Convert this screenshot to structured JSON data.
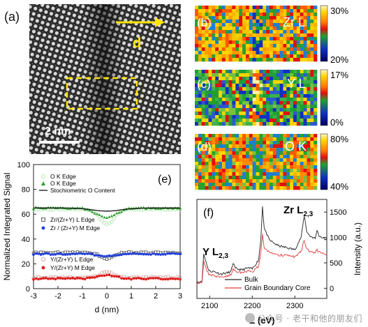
{
  "panels": {
    "a": {
      "label": "(a)",
      "arrow_label": "d",
      "scalebar_label": "2 nm"
    },
    "maps": [
      {
        "label": "(b)",
        "element": "Zr L",
        "scale_max": "30%",
        "scale_min": "20%"
      },
      {
        "label": "(c)",
        "element": "Y L",
        "scale_max": "17%",
        "scale_min": "0%"
      },
      {
        "label": "(d)",
        "element": "O K",
        "scale_max": "80%",
        "scale_min": "40%"
      }
    ],
    "e": {
      "label": "(e)"
    },
    "f": {
      "label": "(f)"
    }
  },
  "chart_data": [
    {
      "type": "scatter",
      "panel": "(e)",
      "xlabel": "d (nm)",
      "ylabel": "Normalized Integrated Signal",
      "xlim": [
        -3,
        3
      ],
      "ylim": [
        0,
        100
      ],
      "xticks": [
        -3,
        -2,
        -1,
        0,
        1,
        2,
        3
      ],
      "yticks": [
        0,
        20,
        40,
        60,
        80,
        100
      ],
      "legend_placement": "inside",
      "series": [
        {
          "name": "O K Edge",
          "style": "open-circle",
          "color": "#b6e7b6",
          "baseline": 64,
          "dip": -12,
          "width": 0.3,
          "point_step": 0.1
        },
        {
          "name": "O K Edge",
          "style": "filled-triangle",
          "color": "#2e9e2e",
          "baseline": 65,
          "dip": -8,
          "width": 0.4,
          "point_step": 0.1
        },
        {
          "name": "Stochiometric O Content",
          "style": "line",
          "color": "#111111",
          "baseline": 65,
          "dip": -2.5,
          "width": 0.6
        },
        {
          "name": "Zr/(Zr+Y)  L Edge",
          "style": "open-square",
          "color": "#555555",
          "baseline": 29,
          "dip": -5,
          "width": 0.25,
          "point_step": 0.1
        },
        {
          "name": "Zr / (Zr+Y) M Edge",
          "style": "filled-circle",
          "color": "#1f3fe0",
          "baseline": 28,
          "dip": -2,
          "width": 0.35,
          "point_step": 0.1
        },
        {
          "name": "Y/(Zr+Y) L Edge",
          "style": "open-circle",
          "color": "#d4a6a6",
          "baseline": 9,
          "dip": 5,
          "width": 0.25,
          "point_step": 0.1
        },
        {
          "name": "Y/(Zr+Y) M Edge",
          "style": "filled-circle",
          "color": "#e01818",
          "baseline": 8,
          "dip": 3,
          "width": 0.35,
          "point_step": 0.1
        }
      ],
      "legend": {
        "top": [
          "O K Edge",
          "O K Edge",
          "Stochiometric O Content"
        ],
        "middle": [
          "Zr/(Zr+Y)  L Edge",
          "Zr / (Zr+Y) M Edge"
        ],
        "bottom": [
          "Y/(Zr+Y) L Edge",
          "Y/(Zr+Y) M Edge"
        ]
      }
    },
    {
      "type": "line",
      "panel": "(f)",
      "xlabel": "E (eV)",
      "ylabel": "Intensity (a.u.)",
      "xlim": [
        2070,
        2375
      ],
      "ylim": [
        -200,
        1750
      ],
      "xticks": [
        2100,
        2200,
        2300
      ],
      "yticks": [
        0,
        500,
        1000,
        1500
      ],
      "annotations": {
        "y_edge": "Y L",
        "y_sub": "2,3",
        "zr_edge": "Zr L",
        "zr_sub": "2,3"
      },
      "series": [
        {
          "name": "Bulk",
          "color": "#222222",
          "x": [
            2070,
            2078,
            2082,
            2086,
            2090,
            2098,
            2110,
            2125,
            2140,
            2150,
            2155,
            2160,
            2175,
            2190,
            2200,
            2215,
            2220,
            2224,
            2228,
            2240,
            2260,
            2280,
            2300,
            2315,
            2322,
            2328,
            2335,
            2348,
            2352,
            2356,
            2362,
            2375
          ],
          "y": [
            130,
            120,
            150,
            680,
            560,
            340,
            330,
            280,
            300,
            330,
            500,
            390,
            360,
            400,
            380,
            560,
            960,
            1620,
            1180,
            950,
            840,
            800,
            760,
            1010,
            1430,
            1120,
            1030,
            980,
            1150,
            1040,
            1010,
            950
          ]
        },
        {
          "name": "Grain Boundary Core",
          "color": "#e03a3a",
          "x": [
            2070,
            2078,
            2082,
            2086,
            2090,
            2098,
            2110,
            2125,
            2140,
            2150,
            2155,
            2160,
            2175,
            2190,
            2200,
            2215,
            2220,
            2224,
            2228,
            2240,
            2260,
            2280,
            2300,
            2315,
            2322,
            2328,
            2335,
            2348,
            2352,
            2356,
            2362,
            2375
          ],
          "y": [
            100,
            110,
            130,
            560,
            420,
            260,
            250,
            220,
            240,
            260,
            400,
            330,
            310,
            340,
            320,
            440,
            700,
            1070,
            800,
            700,
            660,
            640,
            620,
            730,
            950,
            770,
            720,
            700,
            760,
            710,
            690,
            660
          ]
        }
      ]
    }
  ],
  "watermark": "公众号 · 老干和他的朋友们"
}
